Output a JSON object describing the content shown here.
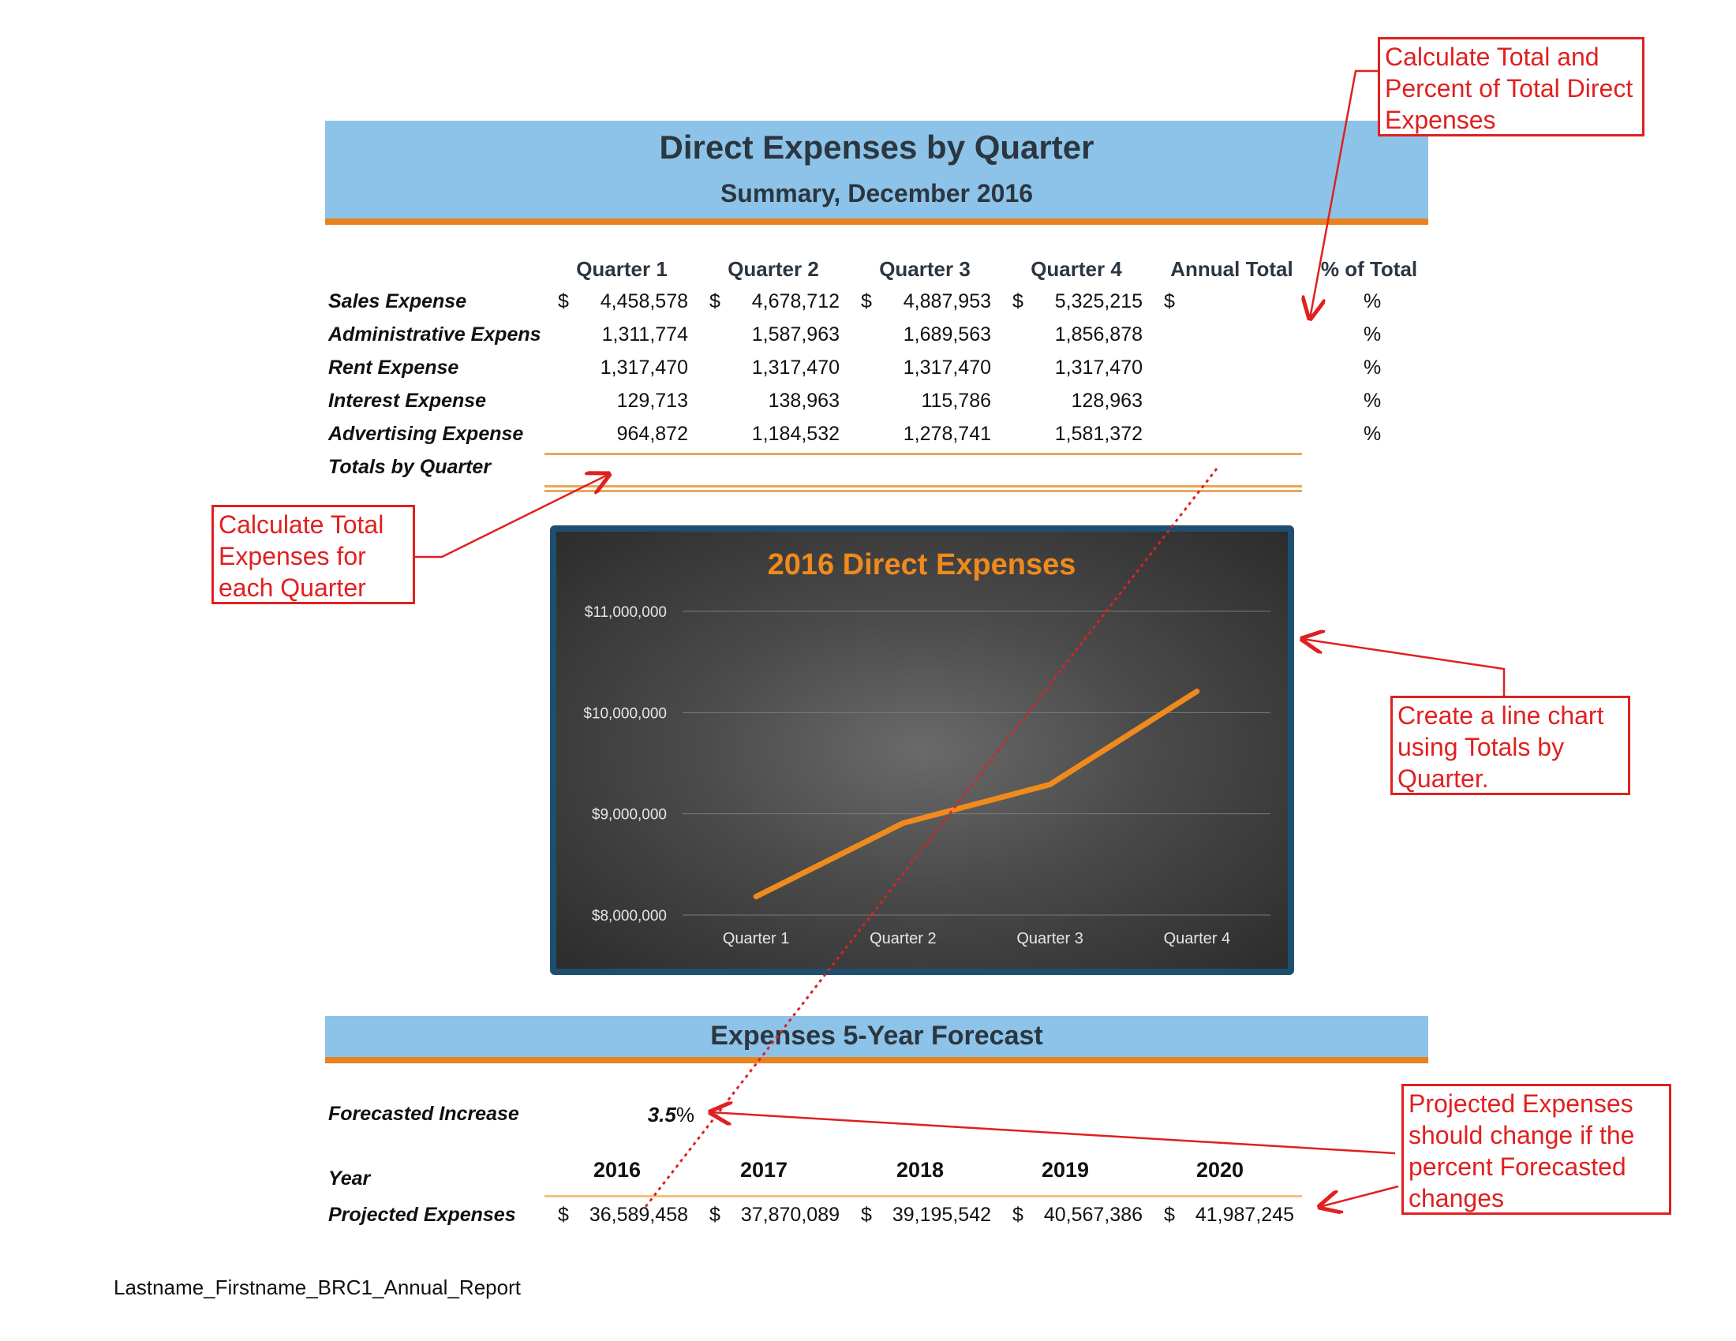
{
  "header": {
    "title": "Direct Expenses by Quarter",
    "subtitle": "Summary, December 2016"
  },
  "table": {
    "columns": [
      "Quarter 1",
      "Quarter 2",
      "Quarter 3",
      "Quarter 4",
      "Annual Total",
      "% of Total"
    ],
    "currency_symbol": "$",
    "percent_symbol": "%",
    "rows": [
      {
        "label": "Sales Expense",
        "values": [
          "4,458,578",
          "4,678,712",
          "4,887,953",
          "5,325,215"
        ]
      },
      {
        "label": "Administrative Expens",
        "values": [
          "1,311,774",
          "1,587,963",
          "1,689,563",
          "1,856,878"
        ]
      },
      {
        "label": "Rent Expense",
        "values": [
          "1,317,470",
          "1,317,470",
          "1,317,470",
          "1,317,470"
        ]
      },
      {
        "label": "Interest Expense",
        "values": [
          "129,713",
          "138,963",
          "115,786",
          "128,963"
        ]
      },
      {
        "label": "Advertising Expense",
        "values": [
          "964,872",
          "1,184,532",
          "1,278,741",
          "1,581,372"
        ]
      }
    ],
    "totals_label": "Totals by Quarter"
  },
  "chart_data": {
    "type": "line",
    "title": "2016 Direct Expenses",
    "categories": [
      "Quarter 1",
      "Quarter 2",
      "Quarter 3",
      "Quarter 4"
    ],
    "series": [
      {
        "values": [
          8182407,
          8907640,
          9289513,
          10209898
        ]
      }
    ],
    "ylim": [
      8000000,
      11000000
    ],
    "yticks": [
      "$8,000,000",
      "$9,000,000",
      "$10,000,000",
      "$11,000,000"
    ],
    "ytick_values": [
      8000000,
      9000000,
      10000000,
      11000000
    ],
    "grid": true,
    "line_color": "#f08a1c"
  },
  "forecast": {
    "title": "Expenses  5-Year Forecast",
    "increase_label": "Forecasted Increase",
    "increase_value": "3.5",
    "increase_unit": "%",
    "year_label": "Year",
    "years": [
      "2016",
      "2017",
      "2018",
      "2019",
      "2020"
    ],
    "projected_label": "Projected Expenses",
    "projected_values": [
      "36,589,458",
      "37,870,089",
      "39,195,542",
      "40,567,386",
      "41,987,245"
    ]
  },
  "callouts": {
    "total_percent": "Calculate Total and Percent of Total Direct Expenses",
    "quarter_totals": "Calculate Total Expenses for each Quarter",
    "line_chart": "Create a line chart using Totals by Quarter.",
    "projected": "Projected Expenses should change if the percent Forecasted changes"
  },
  "footer": "Lastname_Firstname_BRC1_Annual_Report",
  "colors": {
    "banner": "#8dc3e8",
    "accent": "#e8821e",
    "callout": "#e02020",
    "chart_frame": "#1e4f70"
  }
}
